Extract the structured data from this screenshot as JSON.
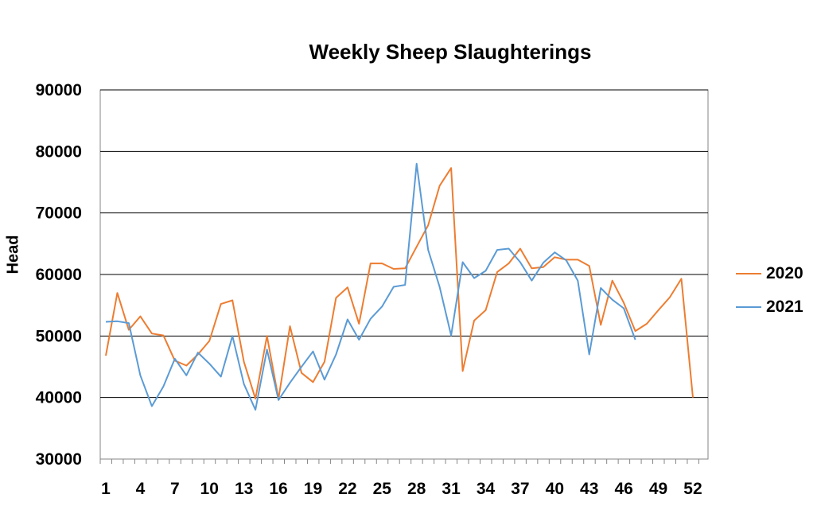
{
  "chart_data": {
    "type": "line",
    "title": "Weekly Sheep Slaughterings",
    "xlabel": "",
    "ylabel": "Head",
    "ylim": [
      30000,
      90000
    ],
    "yticks": [
      "30000",
      "40000",
      "50000",
      "60000",
      "70000",
      "80000",
      "90000"
    ],
    "xlim": [
      1,
      52
    ],
    "xtick_labels": [
      "1",
      "4",
      "7",
      "10",
      "13",
      "16",
      "19",
      "22",
      "25",
      "28",
      "31",
      "34",
      "37",
      "40",
      "43",
      "46",
      "49",
      "52"
    ],
    "grid": "horizontal",
    "legend_position": "right",
    "series": [
      {
        "name": "2020",
        "color": "#ED7D31",
        "x": [
          1,
          2,
          3,
          4,
          5,
          6,
          7,
          8,
          9,
          10,
          11,
          12,
          13,
          14,
          15,
          16,
          17,
          18,
          19,
          20,
          21,
          22,
          23,
          24,
          25,
          26,
          27,
          28,
          29,
          30,
          31,
          32,
          33,
          34,
          35,
          36,
          37,
          38,
          39,
          40,
          41,
          42,
          43,
          44,
          45,
          46,
          47,
          48,
          49,
          50,
          51,
          52
        ],
        "values": [
          46800,
          57000,
          51000,
          53200,
          50400,
          50100,
          46000,
          45200,
          47000,
          49200,
          55200,
          55800,
          45800,
          39800,
          50000,
          39800,
          51600,
          44000,
          42500,
          45800,
          56200,
          57900,
          52000,
          61800,
          61800,
          60900,
          61000,
          64500,
          68000,
          74400,
          77300,
          44300,
          52500,
          54200,
          60400,
          61800,
          64200,
          61000,
          61200,
          62800,
          62400,
          62400,
          61400,
          51800,
          59000,
          55400,
          50800,
          52000,
          54200,
          56300,
          59300,
          40000
        ]
      },
      {
        "name": "2021",
        "color": "#5B9BD5",
        "x": [
          1,
          2,
          3,
          4,
          5,
          6,
          7,
          8,
          9,
          10,
          11,
          12,
          13,
          14,
          15,
          16,
          17,
          18,
          19,
          20,
          21,
          22,
          23,
          24,
          25,
          26,
          27,
          28,
          29,
          30,
          31,
          32,
          33,
          34,
          35,
          36,
          37,
          38,
          39,
          40,
          41,
          42,
          43,
          44,
          45,
          46,
          47
        ],
        "values": [
          52300,
          52400,
          52100,
          43600,
          38600,
          41800,
          46300,
          43600,
          47300,
          45500,
          43400,
          50000,
          42200,
          38000,
          47800,
          39600,
          42400,
          45000,
          47500,
          42900,
          47000,
          52700,
          49400,
          52800,
          54800,
          58000,
          58300,
          78000,
          64000,
          58000,
          50100,
          62000,
          59400,
          60600,
          64000,
          64200,
          62000,
          59000,
          61900,
          63600,
          62300,
          59000,
          47000,
          57800,
          55900,
          54500,
          49400
        ]
      }
    ]
  }
}
